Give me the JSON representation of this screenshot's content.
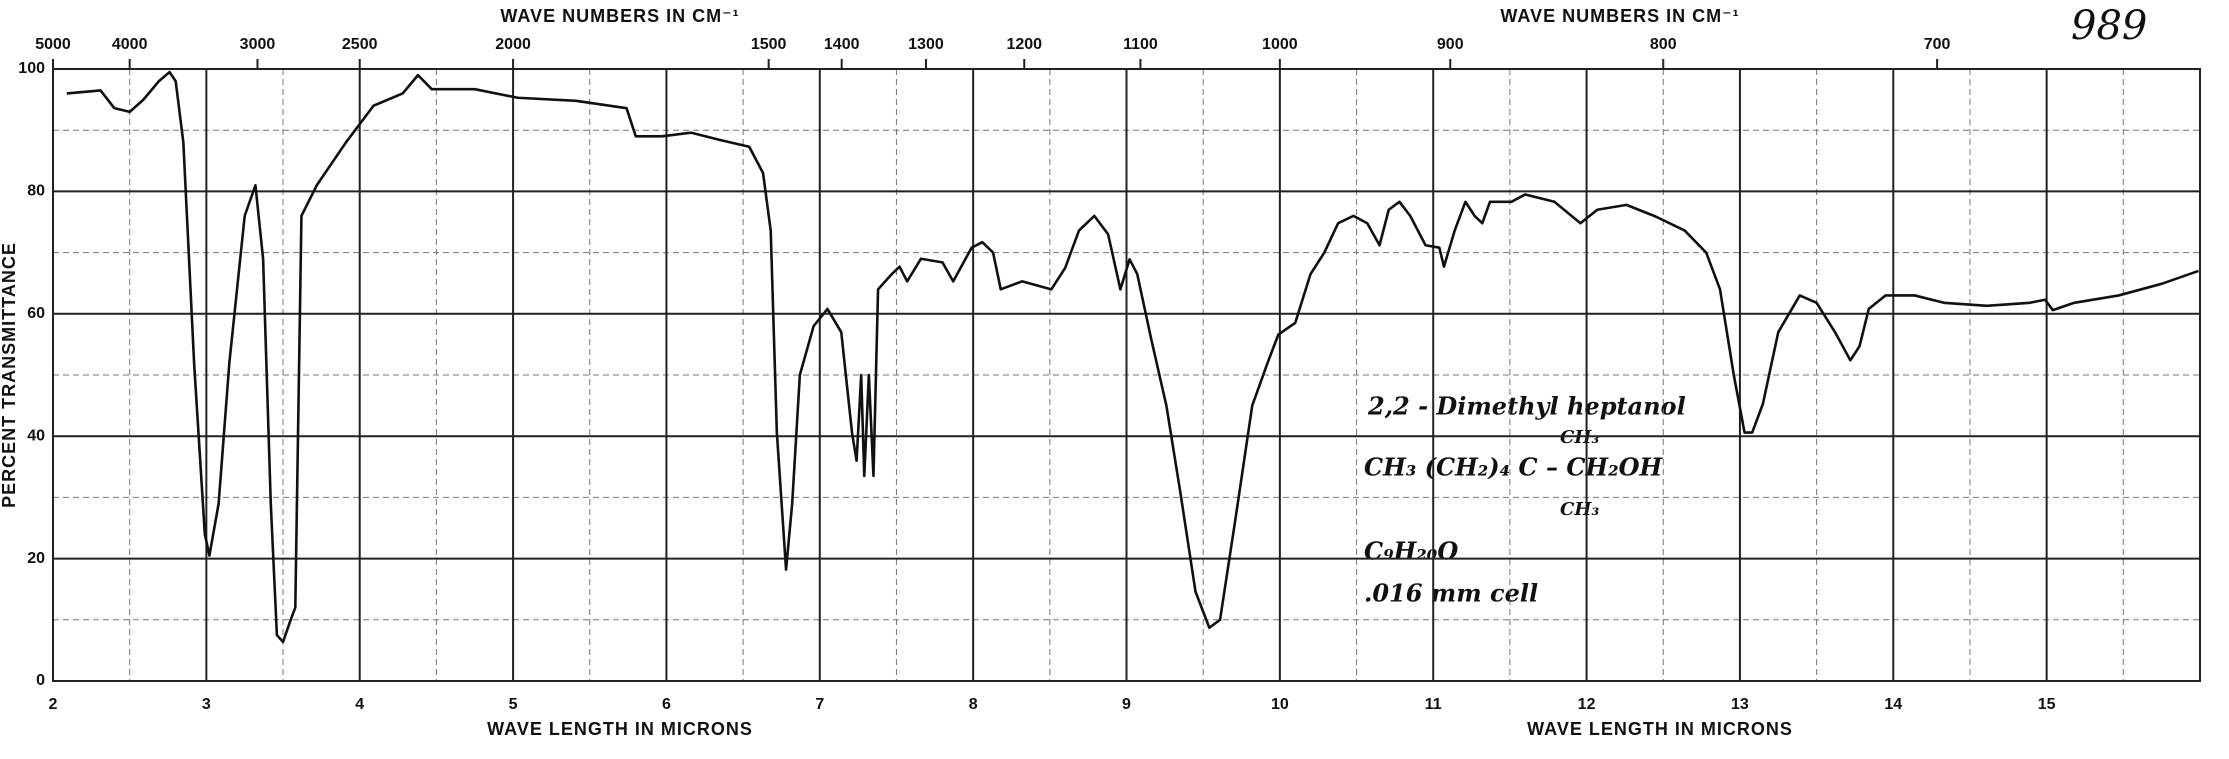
{
  "chart_data": {
    "type": "line",
    "color": "#111111",
    "xlabel": "WAVE LENGTH IN MICRONS",
    "x2label": "WAVE NUMBERS IN CM⁻¹",
    "ylabel": "PERCENT TRANSMITTANCE",
    "xlim": [
      2,
      16
    ],
    "ylim": [
      0,
      100
    ],
    "xticks": [
      2,
      3,
      4,
      5,
      6,
      7,
      8,
      9,
      10,
      11,
      12,
      13,
      14,
      15
    ],
    "xminor": [
      2.5,
      3.5,
      4.5,
      5.5,
      6.5,
      7.5,
      8.5,
      9.5,
      10.5,
      11.5,
      12.5,
      13.5,
      14.5,
      15.5
    ],
    "yticks": [
      0,
      20,
      40,
      60,
      80,
      100
    ],
    "yminor": [
      10,
      30,
      50,
      70,
      90
    ],
    "x2ticks": [
      5000,
      4000,
      3000,
      2500,
      2000,
      1500,
      1400,
      1300,
      1200,
      1100,
      1000,
      900,
      800,
      700
    ],
    "x2_scale": "reciprocal",
    "grid": true,
    "annotations": [
      "989",
      "2,2 - Dimethyl heptanol",
      "CH₃",
      "CH₃ (CH₂)₄ C – CH₂OH",
      "CH₃",
      "C₉H₂₀O",
      ".016 mm cell"
    ],
    "x": [
      2.09,
      2.31,
      2.4,
      2.5,
      2.59,
      2.69,
      2.76,
      2.8,
      2.85,
      2.92,
      2.99,
      3.02,
      3.08,
      3.15,
      3.25,
      3.32,
      3.37,
      3.42,
      3.46,
      3.5,
      3.55,
      3.58,
      3.62,
      3.72,
      3.91,
      4.09,
      4.28,
      4.38,
      4.47,
      4.75,
      5.03,
      5.41,
      5.74,
      5.8,
      5.97,
      6.16,
      6.35,
      6.54,
      6.63,
      6.68,
      6.72,
      6.78,
      6.82,
      6.87,
      6.96,
      7.05,
      7.14,
      7.21,
      7.24,
      7.27,
      7.29,
      7.32,
      7.35,
      7.38,
      7.47,
      7.52,
      7.57,
      7.66,
      7.8,
      7.87,
      7.99,
      8.06,
      8.13,
      8.18,
      8.32,
      8.51,
      8.6,
      8.69,
      8.79,
      8.88,
      8.96,
      9.02,
      9.07,
      9.16,
      9.26,
      9.35,
      9.45,
      9.54,
      9.61,
      9.71,
      9.82,
      9.92,
      9.99,
      10.1,
      10.2,
      10.29,
      10.38,
      10.48,
      10.57,
      10.65,
      10.71,
      10.78,
      10.85,
      10.95,
      11.04,
      11.07,
      11.14,
      11.21,
      11.27,
      11.32,
      11.37,
      11.51,
      11.6,
      11.79,
      11.96,
      12.07,
      12.26,
      12.45,
      12.64,
      12.78,
      12.87,
      12.96,
      13.03,
      13.08,
      13.15,
      13.25,
      13.39,
      13.5,
      13.62,
      13.72,
      13.78,
      13.84,
      13.95,
      14.14,
      14.33,
      14.61,
      14.89,
      14.99,
      15.04,
      15.18,
      15.47,
      15.75,
      15.99
    ],
    "values": [
      96,
      96.5,
      93.6,
      93,
      95,
      98,
      99.5,
      98,
      88,
      52,
      24,
      20.5,
      29,
      52,
      76,
      81,
      69,
      29,
      7.5,
      6.4,
      10,
      12,
      76,
      81,
      88,
      94,
      96,
      99,
      96.7,
      96.7,
      95.3,
      94.8,
      93.6,
      89,
      89,
      89.6,
      88.4,
      87.3,
      83,
      73.6,
      40.6,
      18.2,
      29,
      50,
      58,
      60.8,
      57,
      40.6,
      36,
      50,
      33.5,
      50,
      33.5,
      64,
      66.5,
      67.7,
      65.3,
      69,
      68.4,
      65.3,
      70.8,
      71.7,
      70,
      64,
      65.3,
      64,
      67.5,
      73.6,
      76,
      73,
      64,
      68.9,
      66.5,
      56,
      45,
      31,
      14.6,
      8.7,
      10,
      26.4,
      45,
      52,
      56.6,
      58.5,
      66.5,
      70,
      74.8,
      76,
      74.8,
      71.2,
      77,
      78.3,
      76,
      71.2,
      70.8,
      67.7,
      73.6,
      78.3,
      76,
      74.8,
      78.3,
      78.3,
      79.5,
      78.3,
      74.8,
      77,
      77.8,
      75.9,
      73.6,
      70,
      64,
      50,
      40.6,
      40.6,
      45.3,
      57,
      63,
      61.8,
      57,
      52.4,
      54.7,
      60.8,
      63,
      63,
      61.8,
      61.3,
      61.8,
      62.3,
      60.6,
      61.8,
      63,
      64.9,
      67
    ]
  }
}
